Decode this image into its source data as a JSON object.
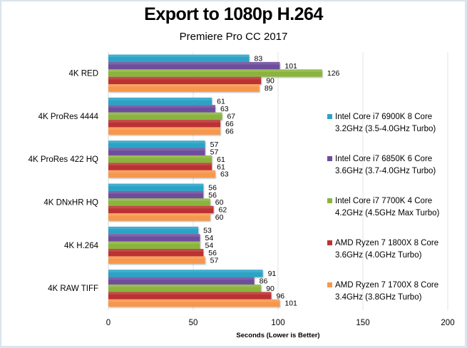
{
  "chart_data": {
    "type": "bar",
    "orientation": "horizontal",
    "title": "Export to 1080p H.264",
    "subtitle": "Premiere Pro CC 2017",
    "xlabel": "Seconds  (Lower is Better)",
    "ylabel": "",
    "xlim": [
      0,
      200
    ],
    "xticks": [
      0,
      50,
      100,
      150,
      200
    ],
    "grid": true,
    "legend_position": "right",
    "categories": [
      "4K RED",
      "4K ProRes 4444",
      "4K ProRes 422 HQ",
      "4K DNxHR HQ",
      "4K H.264",
      "4K RAW TIFF"
    ],
    "series": [
      {
        "name": "Intel Core i7 6900K 8 Core",
        "name_line2": "3.2GHz (3.5-4.0GHz Turbo)",
        "color": "#2aa3c6",
        "values": [
          83,
          61,
          57,
          56,
          53,
          91
        ]
      },
      {
        "name": "Intel Core i7 6850K 6 Core",
        "name_line2": "3.6GHz (3.7-4.0GHz Turbo)",
        "color": "#6e4e9c",
        "values": [
          101,
          63,
          57,
          56,
          54,
          86
        ]
      },
      {
        "name": "Intel Core i7 7700K 4 Core",
        "name_line2": "4.2GHz (4.5GHz Max Turbo)",
        "color": "#8ab43e",
        "values": [
          126,
          67,
          61,
          60,
          54,
          90
        ]
      },
      {
        "name": "AMD Ryzen 7 1800X 8 Core",
        "name_line2": "3.6GHz (4.0GHz Turbo)",
        "color": "#bb3232",
        "values": [
          90,
          66,
          61,
          62,
          56,
          96
        ]
      },
      {
        "name": "AMD Ryzen 7 1700X 8 Core",
        "name_line2": "3.4GHz (3.8GHz Turbo)",
        "color": "#f7974b",
        "values": [
          89,
          66,
          63,
          60,
          57,
          101
        ]
      }
    ]
  }
}
